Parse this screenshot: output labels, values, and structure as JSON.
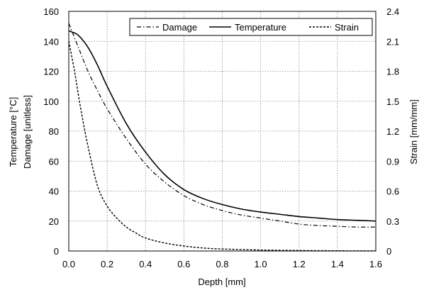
{
  "chart_data": {
    "type": "line",
    "title": "",
    "xlabel": "Depth [mm]",
    "ylabel_left_lines": [
      "Temperature [°C]",
      "Damage [unitless]"
    ],
    "ylabel_right": "Strain [mm/mm]",
    "xlim": [
      0,
      1.6
    ],
    "ylim_left": [
      0,
      160
    ],
    "ylim_right": [
      0,
      2.4
    ],
    "x_ticks": [
      "0.0",
      "0.2",
      "0.4",
      "0.6",
      "0.8",
      "1.0",
      "1.2",
      "1.4",
      "1.6"
    ],
    "y_left_ticks": [
      "0",
      "20",
      "40",
      "60",
      "80",
      "100",
      "120",
      "140",
      "160"
    ],
    "y_right_ticks": [
      "0",
      "0.3",
      "0.6",
      "0.9",
      "1.2",
      "1.5",
      "1.8",
      "2.1",
      "2.4"
    ],
    "grid": "dotted",
    "legend_position": "top-right",
    "series": [
      {
        "name": "Damage",
        "axis": "left",
        "dash": "dash-dot",
        "x": [
          0,
          0.05,
          0.1,
          0.15,
          0.2,
          0.3,
          0.4,
          0.5,
          0.6,
          0.7,
          0.8,
          0.9,
          1.0,
          1.1,
          1.2,
          1.3,
          1.4,
          1.5,
          1.6
        ],
        "y": [
          152,
          136,
          120,
          107,
          95,
          75,
          58,
          46,
          37,
          31,
          27,
          24,
          22,
          20,
          18,
          17,
          16.5,
          16,
          16
        ]
      },
      {
        "name": "Temperature",
        "axis": "left",
        "dash": "solid",
        "x": [
          0,
          0.02,
          0.05,
          0.1,
          0.15,
          0.2,
          0.3,
          0.4,
          0.5,
          0.6,
          0.7,
          0.8,
          0.9,
          1.0,
          1.1,
          1.2,
          1.3,
          1.4,
          1.5,
          1.6
        ],
        "y": [
          147,
          146,
          144,
          136,
          124,
          110,
          85,
          66,
          51,
          41,
          35,
          31,
          28,
          26,
          24.5,
          23,
          22,
          21,
          20.5,
          20
        ]
      },
      {
        "name": "Strain",
        "axis": "right",
        "dash": "dashed",
        "x": [
          0,
          0.03,
          0.06,
          0.1,
          0.15,
          0.2,
          0.25,
          0.3,
          0.35,
          0.4,
          0.5,
          0.6,
          0.7,
          0.8,
          1.0,
          1.2,
          1.4,
          1.6
        ],
        "y": [
          2.1,
          1.8,
          1.45,
          1.05,
          0.65,
          0.45,
          0.33,
          0.24,
          0.18,
          0.13,
          0.08,
          0.05,
          0.03,
          0.02,
          0.01,
          0.005,
          0.002,
          0.001
        ]
      }
    ]
  }
}
